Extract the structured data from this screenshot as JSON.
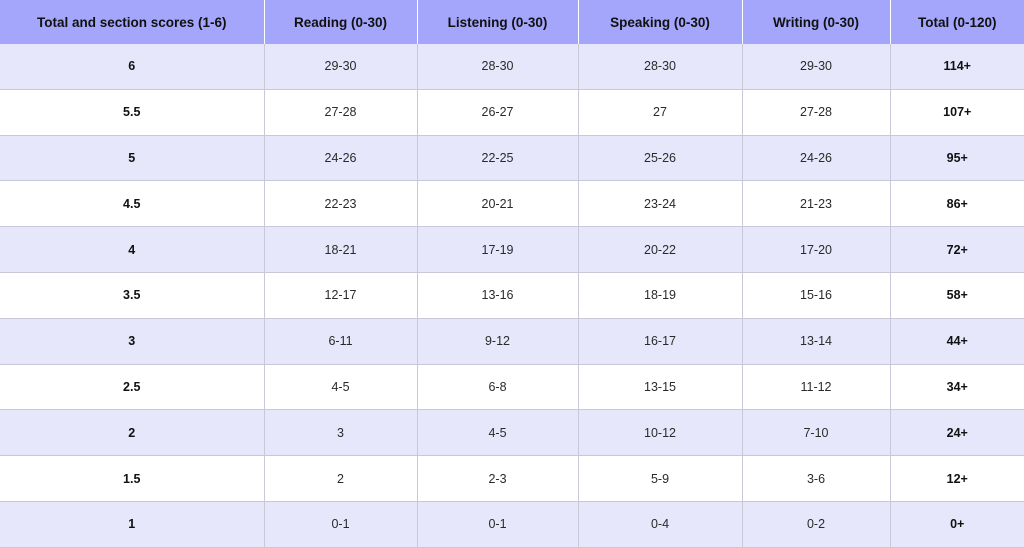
{
  "headers": [
    "Total and section scores (1-6)",
    "Reading (0-30)",
    "Listening (0-30)",
    "Speaking (0-30)",
    "Writing (0-30)",
    "Total (0-120)"
  ],
  "rows": [
    [
      "6",
      "29-30",
      "28-30",
      "28-30",
      "29-30",
      "114+"
    ],
    [
      "5.5",
      "27-28",
      "26-27",
      "27",
      "27-28",
      "107+"
    ],
    [
      "5",
      "24-26",
      "22-25",
      "25-26",
      "24-26",
      "95+"
    ],
    [
      "4.5",
      "22-23",
      "20-21",
      "23-24",
      "21-23",
      "86+"
    ],
    [
      "4",
      "18-21",
      "17-19",
      "20-22",
      "17-20",
      "72+"
    ],
    [
      "3.5",
      "12-17",
      "13-16",
      "18-19",
      "15-16",
      "58+"
    ],
    [
      "3",
      "6-11",
      "9-12",
      "16-17",
      "13-14",
      "44+"
    ],
    [
      "2.5",
      "4-5",
      "6-8",
      "13-15",
      "11-12",
      "34+"
    ],
    [
      "2",
      "3",
      "4-5",
      "10-12",
      "7-10",
      "24+"
    ],
    [
      "1.5",
      "2",
      "2-3",
      "5-9",
      "3-6",
      "12+"
    ],
    [
      "1",
      "0-1",
      "0-1",
      "0-4",
      "0-2",
      "0+"
    ]
  ],
  "colors": {
    "header_bg": "#a4a6fb",
    "stripe_bg": "#e7e7fc",
    "row_bg": "#ffffff"
  }
}
